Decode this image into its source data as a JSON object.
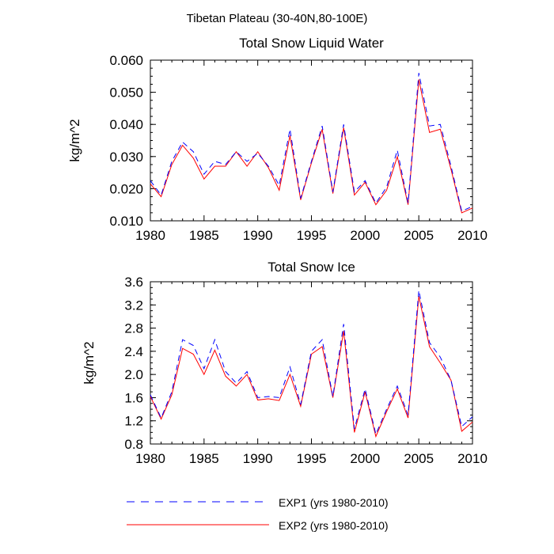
{
  "figure": {
    "suptitle": "Tibetan Plateau (30-40N,80-100E)"
  },
  "legend": {
    "entries": [
      {
        "label": "EXP1 (yrs 1980-2010)",
        "color": "#0000ff",
        "style": "dashed"
      },
      {
        "label": "EXP2 (yrs 1980-2010)",
        "color": "#ff0000",
        "style": "solid"
      }
    ]
  },
  "chart_data": [
    {
      "type": "line",
      "title": "Total Snow Liquid Water",
      "xlabel": "",
      "ylabel": "kg/m^2",
      "xlim": [
        1980,
        2010
      ],
      "ylim": [
        0.01,
        0.06
      ],
      "xticks": [
        1980,
        1985,
        1990,
        1995,
        2000,
        2005,
        2010
      ],
      "yticks": [
        0.01,
        0.02,
        0.03,
        0.04,
        0.05,
        0.06
      ],
      "ytick_labels": [
        "0.010",
        "0.020",
        "0.030",
        "0.040",
        "0.050",
        "0.060"
      ],
      "x": [
        1980,
        1981,
        1982,
        1983,
        1984,
        1985,
        1986,
        1987,
        1988,
        1989,
        1990,
        1991,
        1992,
        1993,
        1994,
        1995,
        1996,
        1997,
        1998,
        1999,
        2000,
        2001,
        2002,
        2003,
        2004,
        2005,
        2006,
        2007,
        2008,
        2009,
        2010
      ],
      "series": [
        {
          "name": "EXP1 (yrs 1980-2010)",
          "color": "#0000ff",
          "dash": true,
          "values": [
            0.0225,
            0.018,
            0.0285,
            0.0345,
            0.0315,
            0.0245,
            0.0285,
            0.0275,
            0.0315,
            0.0285,
            0.031,
            0.027,
            0.021,
            0.0385,
            0.017,
            0.0285,
            0.0395,
            0.019,
            0.04,
            0.019,
            0.0225,
            0.0155,
            0.0205,
            0.032,
            0.0155,
            0.056,
            0.0395,
            0.04,
            0.027,
            0.013,
            0.0145
          ]
        },
        {
          "name": "EXP2 (yrs 1980-2010)",
          "color": "#ff0000",
          "dash": false,
          "values": [
            0.0215,
            0.0175,
            0.0275,
            0.0335,
            0.0295,
            0.023,
            0.027,
            0.027,
            0.0315,
            0.027,
            0.0315,
            0.0265,
            0.0195,
            0.0365,
            0.0165,
            0.028,
            0.0385,
            0.0185,
            0.039,
            0.018,
            0.022,
            0.015,
            0.0195,
            0.03,
            0.015,
            0.054,
            0.0375,
            0.0385,
            0.026,
            0.0125,
            0.014
          ]
        }
      ]
    },
    {
      "type": "line",
      "title": "Total Snow Ice",
      "xlabel": "",
      "ylabel": "kg/m^2",
      "xlim": [
        1980,
        2010
      ],
      "ylim": [
        0.8,
        3.6
      ],
      "xticks": [
        1980,
        1985,
        1990,
        1995,
        2000,
        2005,
        2010
      ],
      "yticks": [
        0.8,
        1.2,
        1.6,
        2.0,
        2.4,
        2.8,
        3.2,
        3.6
      ],
      "ytick_labels": [
        "0.8",
        "1.2",
        "1.6",
        "2.0",
        "2.4",
        "2.8",
        "3.2",
        "3.6"
      ],
      "x": [
        1980,
        1981,
        1982,
        1983,
        1984,
        1985,
        1986,
        1987,
        1988,
        1989,
        1990,
        1991,
        1992,
        1993,
        1994,
        1995,
        1996,
        1997,
        1998,
        1999,
        2000,
        2001,
        2002,
        2003,
        2004,
        2005,
        2006,
        2007,
        2008,
        2009,
        2010
      ],
      "series": [
        {
          "name": "EXP1 (yrs 1980-2010)",
          "color": "#0000ff",
          "dash": true,
          "values": [
            1.65,
            1.25,
            1.7,
            2.6,
            2.5,
            2.1,
            2.6,
            2.05,
            1.85,
            2.05,
            1.6,
            1.62,
            1.6,
            2.13,
            1.48,
            2.4,
            2.6,
            1.62,
            2.87,
            1.06,
            1.75,
            0.97,
            1.4,
            1.8,
            1.3,
            3.45,
            2.55,
            2.3,
            1.9,
            1.1,
            1.27
          ]
        },
        {
          "name": "EXP2 (yrs 1980-2010)",
          "color": "#ff0000",
          "dash": false,
          "values": [
            1.62,
            1.23,
            1.65,
            2.45,
            2.35,
            2.0,
            2.42,
            1.97,
            1.8,
            2.0,
            1.56,
            1.58,
            1.55,
            2.0,
            1.45,
            2.35,
            2.48,
            1.6,
            2.75,
            1.0,
            1.7,
            0.93,
            1.36,
            1.75,
            1.25,
            3.35,
            2.48,
            2.2,
            1.9,
            1.02,
            1.18
          ]
        }
      ]
    }
  ]
}
